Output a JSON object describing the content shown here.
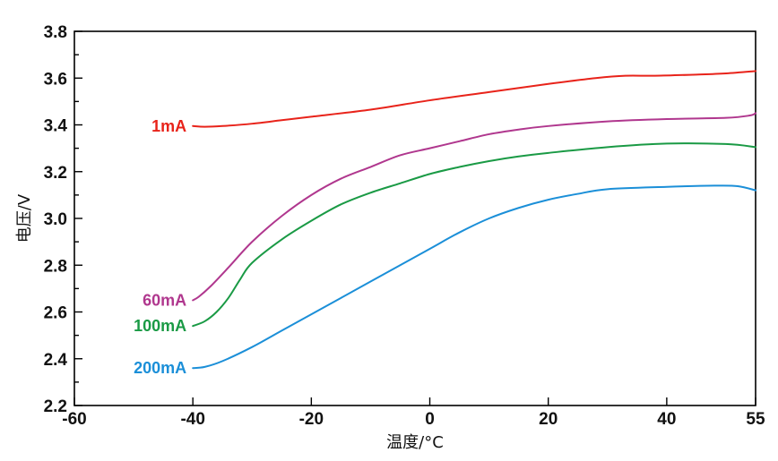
{
  "chart_data": {
    "type": "line",
    "xlabel": "温度/°C",
    "ylabel": "电压/V",
    "xlim": [
      -60,
      55
    ],
    "ylim": [
      2.2,
      3.8
    ],
    "x_ticks": [
      -60,
      -40,
      -20,
      0,
      20,
      40,
      55
    ],
    "x_tick_labels": [
      "-60",
      "-40",
      "-20",
      "0",
      "20",
      "40",
      "55"
    ],
    "y_ticks": [
      2.2,
      2.4,
      2.6,
      2.8,
      3.0,
      3.2,
      3.4,
      3.6,
      3.8
    ],
    "y_tick_labels": [
      "2.2",
      "2.4",
      "2.6",
      "2.8",
      "3.0",
      "3.2",
      "3.4",
      "3.6",
      "3.8"
    ],
    "y_minor_ticks": [
      2.3,
      2.5,
      2.7,
      2.9,
      3.1,
      3.3,
      3.5,
      3.7
    ],
    "grid": false,
    "series": [
      {
        "name": "1mA",
        "color": "#e8231a",
        "points": [
          [
            -40,
            3.395
          ],
          [
            -38,
            3.392
          ],
          [
            -35,
            3.395
          ],
          [
            -30,
            3.405
          ],
          [
            -25,
            3.42
          ],
          [
            -20,
            3.435
          ],
          [
            -10,
            3.465
          ],
          [
            0,
            3.505
          ],
          [
            10,
            3.54
          ],
          [
            20,
            3.575
          ],
          [
            28,
            3.6
          ],
          [
            33,
            3.61
          ],
          [
            38,
            3.61
          ],
          [
            45,
            3.615
          ],
          [
            50,
            3.62
          ],
          [
            55,
            3.63
          ]
        ]
      },
      {
        "name": "60mA",
        "color": "#b0378e",
        "points": [
          [
            -40,
            2.65
          ],
          [
            -39,
            2.665
          ],
          [
            -37,
            2.71
          ],
          [
            -34,
            2.79
          ],
          [
            -30,
            2.9
          ],
          [
            -25,
            3.01
          ],
          [
            -20,
            3.1
          ],
          [
            -15,
            3.17
          ],
          [
            -10,
            3.22
          ],
          [
            -5,
            3.27
          ],
          [
            0,
            3.3
          ],
          [
            5,
            3.33
          ],
          [
            10,
            3.36
          ],
          [
            15,
            3.38
          ],
          [
            20,
            3.395
          ],
          [
            30,
            3.415
          ],
          [
            40,
            3.425
          ],
          [
            50,
            3.43
          ],
          [
            54,
            3.44
          ],
          [
            55,
            3.45
          ]
        ]
      },
      {
        "name": "100mA",
        "color": "#1a9a45",
        "points": [
          [
            -40,
            2.54
          ],
          [
            -38,
            2.56
          ],
          [
            -36,
            2.6
          ],
          [
            -34,
            2.66
          ],
          [
            -32,
            2.74
          ],
          [
            -30,
            2.81
          ],
          [
            -25,
            2.91
          ],
          [
            -20,
            2.99
          ],
          [
            -15,
            3.06
          ],
          [
            -10,
            3.11
          ],
          [
            -5,
            3.15
          ],
          [
            0,
            3.19
          ],
          [
            5,
            3.22
          ],
          [
            10,
            3.245
          ],
          [
            15,
            3.265
          ],
          [
            20,
            3.28
          ],
          [
            30,
            3.305
          ],
          [
            40,
            3.32
          ],
          [
            50,
            3.318
          ],
          [
            55,
            3.305
          ]
        ]
      },
      {
        "name": "200mA",
        "color": "#1b8fd8",
        "points": [
          [
            -40,
            2.36
          ],
          [
            -38,
            2.365
          ],
          [
            -35,
            2.39
          ],
          [
            -30,
            2.45
          ],
          [
            -25,
            2.52
          ],
          [
            -20,
            2.59
          ],
          [
            -15,
            2.66
          ],
          [
            -10,
            2.73
          ],
          [
            -5,
            2.8
          ],
          [
            0,
            2.87
          ],
          [
            5,
            2.94
          ],
          [
            10,
            3.0
          ],
          [
            15,
            3.045
          ],
          [
            20,
            3.08
          ],
          [
            25,
            3.105
          ],
          [
            30,
            3.125
          ],
          [
            40,
            3.135
          ],
          [
            48,
            3.14
          ],
          [
            52,
            3.138
          ],
          [
            55,
            3.12
          ]
        ]
      }
    ]
  }
}
